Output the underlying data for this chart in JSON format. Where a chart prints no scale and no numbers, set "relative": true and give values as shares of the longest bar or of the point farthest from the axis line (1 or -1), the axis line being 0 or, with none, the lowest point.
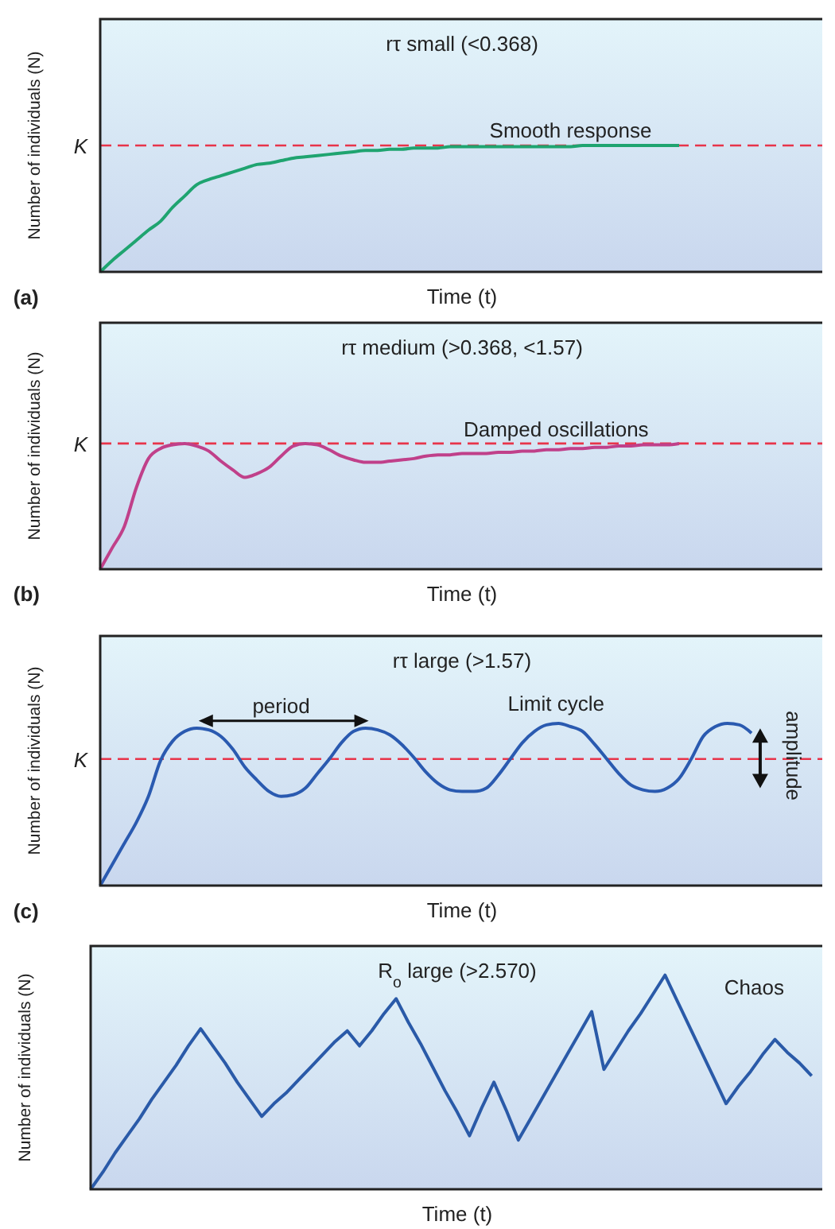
{
  "chart_data": [
    {
      "type": "line",
      "title": "rτ small (<0.368)",
      "xlabel": "Time (t)",
      "ylabel": "Number of individuals (N)",
      "relative": true,
      "categories": [
        null,
        null,
        null,
        null,
        null,
        null,
        null,
        null,
        null,
        null,
        null,
        null,
        null,
        null,
        null,
        null,
        null,
        null,
        null,
        null,
        null,
        null,
        null,
        null,
        null,
        null,
        null,
        null,
        null,
        null,
        null,
        null,
        null,
        null,
        null,
        null,
        null,
        null,
        null,
        null,
        null,
        null,
        null,
        null,
        null,
        null,
        null,
        null,
        null,
        null,
        null,
        null,
        null,
        null,
        null,
        null,
        null,
        null,
        null,
        null,
        null
      ],
      "series": [
        {
          "color": "#1fa470",
          "values": [
            0,
            0.09,
            0.17,
            0.25,
            0.33,
            0.4,
            0.51,
            0.6,
            0.69,
            0.73,
            0.76,
            0.79,
            0.82,
            0.85,
            0.86,
            0.88,
            0.9,
            0.91,
            0.92,
            0.93,
            0.94,
            0.95,
            0.96,
            0.96,
            0.97,
            0.97,
            0.98,
            0.98,
            0.98,
            0.99,
            0.99,
            0.99,
            0.99,
            0.99,
            0.99,
            0.99,
            0.99,
            0.99,
            0.99,
            0.99,
            1,
            1,
            1,
            1,
            1,
            1,
            1,
            1,
            1,
            null,
            null,
            null,
            null,
            null,
            null,
            null,
            null,
            null,
            null,
            null,
            null
          ]
        }
      ],
      "ref_lines": [
        {
          "axis": "y",
          "value": 1,
          "label": "K",
          "color": "#e8344a",
          "line_style": "dashed"
        }
      ],
      "annotations": [
        "(a)",
        "Smooth response"
      ]
    },
    {
      "type": "line",
      "title": "rτ medium (>0.368, <1.57)",
      "xlabel": "Time (t)",
      "ylabel": "Number of individuals (N)",
      "relative": true,
      "categories": [
        null,
        null,
        null,
        null,
        null,
        null,
        null,
        null,
        null,
        null,
        null,
        null,
        null,
        null,
        null,
        null,
        null,
        null,
        null,
        null,
        null,
        null,
        null,
        null,
        null,
        null,
        null,
        null,
        null,
        null,
        null,
        null,
        null,
        null,
        null,
        null,
        null,
        null,
        null,
        null,
        null,
        null,
        null,
        null,
        null,
        null,
        null,
        null,
        null,
        null,
        null,
        null,
        null,
        null,
        null,
        null,
        null,
        null,
        null,
        null,
        null
      ],
      "series": [
        {
          "color": "#c0408a",
          "values": [
            0,
            0.17,
            0.34,
            0.65,
            0.88,
            0.96,
            0.99,
            1,
            0.98,
            0.94,
            0.86,
            0.79,
            0.73,
            0.76,
            0.81,
            0.9,
            0.98,
            1,
            0.99,
            0.95,
            0.9,
            0.87,
            0.85,
            0.85,
            0.86,
            0.87,
            0.88,
            0.9,
            0.91,
            0.91,
            0.92,
            0.92,
            0.92,
            0.93,
            0.93,
            0.94,
            0.94,
            0.95,
            0.95,
            0.96,
            0.96,
            0.97,
            0.97,
            0.98,
            0.98,
            0.99,
            0.99,
            0.99,
            1,
            null,
            null,
            null,
            null,
            null,
            null,
            null,
            null,
            null,
            null,
            null,
            null
          ]
        }
      ],
      "ref_lines": [
        {
          "axis": "y",
          "value": 1,
          "label": "K",
          "color": "#e8344a",
          "line_style": "dashed"
        }
      ],
      "annotations": [
        "(b)",
        "Damped oscillations"
      ]
    },
    {
      "type": "line",
      "title": "rτ large (>1.57)",
      "xlabel": "Time (t)",
      "ylabel": "Number of individuals (N)",
      "relative": true,
      "categories": [
        null,
        null,
        null,
        null,
        null,
        null,
        null,
        null,
        null,
        null,
        null,
        null,
        null,
        null,
        null,
        null,
        null,
        null,
        null,
        null,
        null,
        null,
        null,
        null,
        null,
        null,
        null,
        null,
        null,
        null,
        null,
        null,
        null,
        null,
        null,
        null,
        null,
        null,
        null,
        null,
        null,
        null,
        null,
        null,
        null,
        null,
        null,
        null,
        null,
        null,
        null,
        null,
        null,
        null,
        null,
        null,
        null,
        null,
        null,
        null,
        null
      ],
      "series": [
        {
          "color": "#2a5ab0",
          "values": [
            0,
            0.13,
            0.26,
            0.39,
            0.55,
            0.77,
            0.89,
            0.95,
            0.97,
            0.96,
            0.92,
            0.84,
            0.73,
            0.65,
            0.58,
            0.55,
            0.56,
            0.6,
            0.69,
            0.78,
            0.88,
            0.95,
            0.97,
            0.96,
            0.93,
            0.87,
            0.79,
            0.7,
            0.63,
            0.59,
            0.58,
            0.58,
            0.6,
            0.68,
            0.78,
            0.88,
            0.95,
            0.99,
            1,
            0.98,
            0.95,
            0.87,
            0.78,
            0.69,
            0.62,
            0.59,
            0.58,
            0.6,
            0.66,
            0.78,
            0.92,
            0.98,
            1,
            0.99,
            0.94,
            null,
            null,
            null,
            null,
            null,
            null
          ]
        }
      ],
      "ref_lines": [
        {
          "axis": "y",
          "value": 0.78,
          "label": "K",
          "color": "#e8344a",
          "line_style": "dashed"
        }
      ],
      "annotations": [
        "(c)",
        "period",
        "Limit cycle",
        "amplitude"
      ]
    },
    {
      "type": "line",
      "title": "R$_{o}$ large (>2.570)",
      "xlabel": "Time (t)",
      "ylabel": "Number of individuals (N)",
      "relative": true,
      "categories": [
        null,
        null,
        null,
        null,
        null,
        null,
        null,
        null,
        null,
        null,
        null,
        null,
        null,
        null,
        null,
        null,
        null,
        null,
        null,
        null,
        null,
        null,
        null,
        null,
        null,
        null,
        null,
        null,
        null,
        null,
        null,
        null,
        null,
        null,
        null,
        null,
        null,
        null,
        null,
        null,
        null,
        null,
        null,
        null,
        null,
        null,
        null,
        null,
        null,
        null,
        null,
        null,
        null,
        null,
        null,
        null,
        null,
        null,
        null,
        null,
        null
      ],
      "series": [
        {
          "color": "#2a5aa8",
          "values": [
            0,
            0.08,
            0.17,
            0.25,
            0.33,
            0.42,
            0.5,
            0.58,
            0.67,
            0.75,
            0.67,
            0.59,
            0.5,
            0.42,
            0.34,
            0.4,
            0.45,
            0.51,
            0.57,
            0.63,
            0.69,
            0.74,
            0.67,
            0.74,
            0.82,
            0.89,
            0.78,
            0.68,
            0.57,
            0.46,
            0.36,
            0.25,
            0.38,
            0.5,
            0.37,
            0.23,
            0.33,
            0.43,
            0.53,
            0.63,
            0.73,
            0.83,
            0.56,
            0.65,
            0.74,
            0.82,
            0.91,
            1,
            0.88,
            0.76,
            0.64,
            0.52,
            0.4,
            0.48,
            0.55,
            0.63,
            0.7,
            0.64,
            0.59,
            0.53,
            null
          ]
        }
      ],
      "annotations": [
        "Chaos"
      ]
    }
  ]
}
